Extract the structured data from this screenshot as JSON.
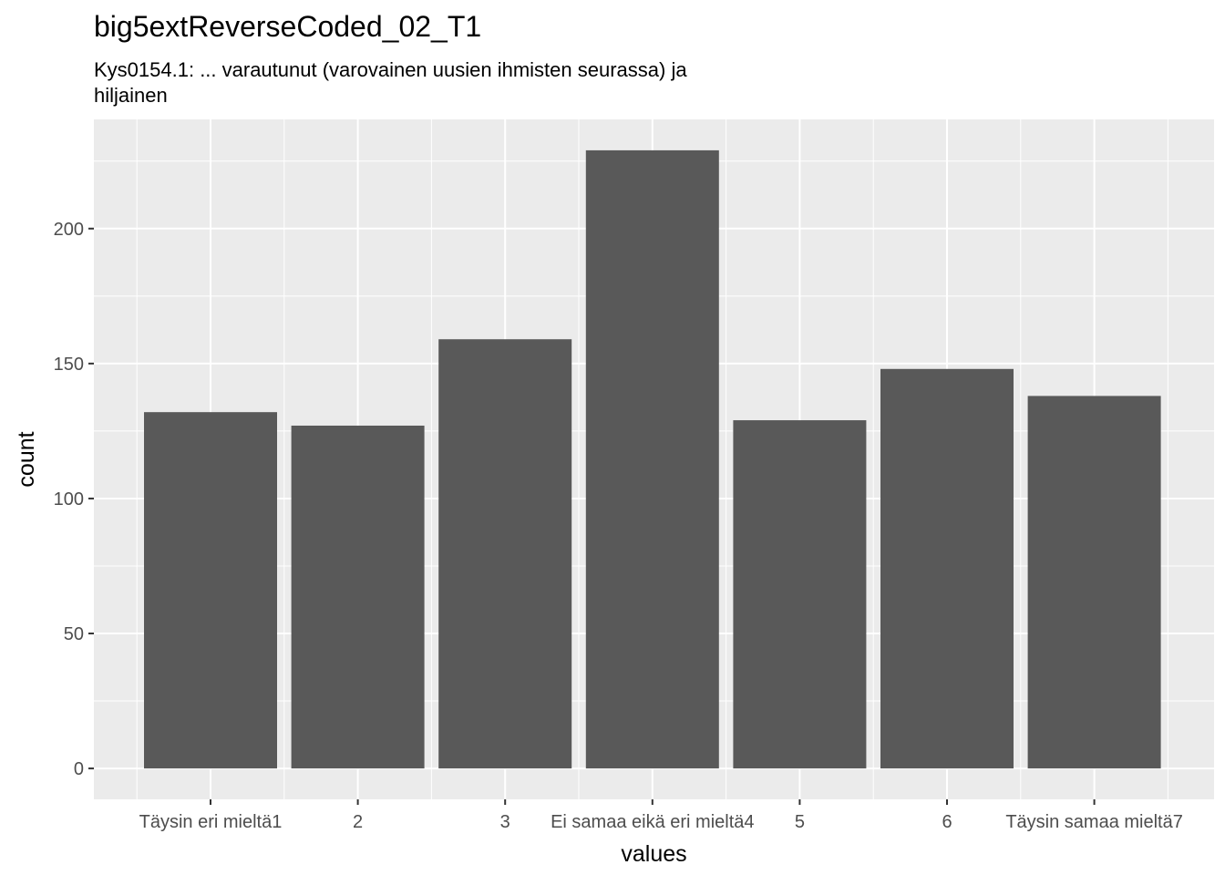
{
  "chart_data": {
    "type": "bar",
    "title": "big5extReverseCoded_02_T1",
    "subtitle_lines": [
      "Kys0154.1: ... varautunut (varovainen uusien ihmisten seurassa) ja",
      "hiljainen"
    ],
    "xlabel": "values",
    "ylabel": "count",
    "categories": [
      "Täysin eri mieltä1",
      "2",
      "3",
      "Ei samaa eikä eri mieltä4",
      "5",
      "6",
      "Täysin samaa mieltä7"
    ],
    "values": [
      132,
      127,
      159,
      229,
      129,
      148,
      138
    ],
    "yticks": [
      0,
      50,
      100,
      150,
      200
    ],
    "ylim": [
      -11.45,
      240.45
    ],
    "grid": true,
    "colors": {
      "panel": "#ebebeb",
      "grid": "#ffffff",
      "bar": "#595959",
      "tick": "#333333"
    }
  }
}
